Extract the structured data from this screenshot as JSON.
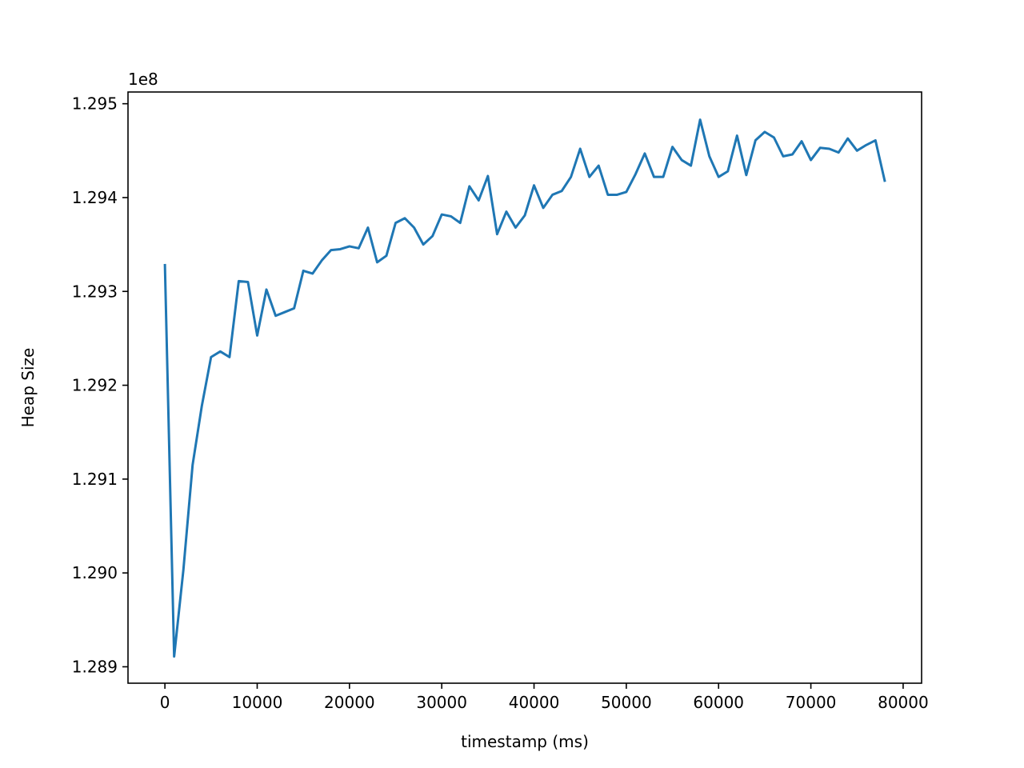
{
  "chart_data": {
    "type": "line",
    "xlabel": "timestamp (ms)",
    "ylabel": "Heap Size",
    "y_offset_label": "1e8",
    "y_scale_factor": 100000000,
    "xlim": [
      -4000,
      82000
    ],
    "ylim": [
      128882500,
      129512500
    ],
    "x_ticks": [
      0,
      10000,
      20000,
      30000,
      40000,
      50000,
      60000,
      70000,
      80000
    ],
    "x_tick_labels": [
      "0",
      "10000",
      "20000",
      "30000",
      "40000",
      "50000",
      "60000",
      "70000",
      "80000"
    ],
    "y_ticks": [
      128900000,
      129000000,
      129100000,
      129200000,
      129300000,
      129400000,
      129500000
    ],
    "y_tick_labels": [
      "1.289",
      "1.290",
      "1.291",
      "1.292",
      "1.293",
      "1.294",
      "1.295"
    ],
    "grid": false,
    "legend": "none",
    "line_color": "#1f77b4",
    "series": [
      {
        "x": [
          0,
          1000,
          2000,
          3000,
          4000,
          5000,
          6000,
          7000,
          8000,
          9000,
          10000,
          11000,
          12000,
          13000,
          14000,
          15000,
          16000,
          17000,
          18000,
          19000,
          20000,
          21000,
          22000,
          23000,
          24000,
          25000,
          26000,
          27000,
          28000,
          29000,
          30000,
          31000,
          32000,
          33000,
          34000,
          35000,
          36000,
          37000,
          38000,
          39000,
          40000,
          41000,
          42000,
          43000,
          44000,
          45000,
          46000,
          47000,
          48000,
          49000,
          50000,
          51000,
          52000,
          53000,
          54000,
          55000,
          56000,
          57000,
          58000,
          59000,
          60000,
          61000,
          62000,
          63000,
          64000,
          65000,
          66000,
          67000,
          68000,
          69000,
          70000,
          71000,
          72000,
          73000,
          74000,
          75000,
          76000,
          77000,
          78000
        ],
        "y": [
          129328000,
          128911000,
          129003000,
          129115000,
          129178000,
          129230000,
          129236000,
          129230000,
          129311000,
          129310000,
          129253000,
          129302000,
          129274000,
          129278000,
          129282000,
          129322000,
          129319000,
          129333000,
          129344000,
          129345000,
          129348000,
          129346000,
          129368000,
          129331000,
          129338000,
          129373000,
          129378000,
          129368000,
          129350000,
          129359000,
          129382000,
          129380000,
          129373000,
          129412000,
          129397000,
          129423000,
          129361000,
          129385000,
          129368000,
          129381000,
          129413000,
          129389000,
          129403000,
          129407000,
          129422000,
          129452000,
          129422000,
          129434000,
          129403000,
          129403000,
          129406000,
          129425000,
          129447000,
          129422000,
          129422000,
          129454000,
          129440000,
          129434000,
          129483000,
          129444000,
          129422000,
          129428000,
          129466000,
          129424000,
          129461000,
          129470000,
          129464000,
          129444000,
          129446000,
          129460000,
          129440000,
          129453000,
          129452000,
          129448000,
          129463000,
          129450000,
          129456000,
          129461000,
          129418000
        ]
      }
    ]
  }
}
